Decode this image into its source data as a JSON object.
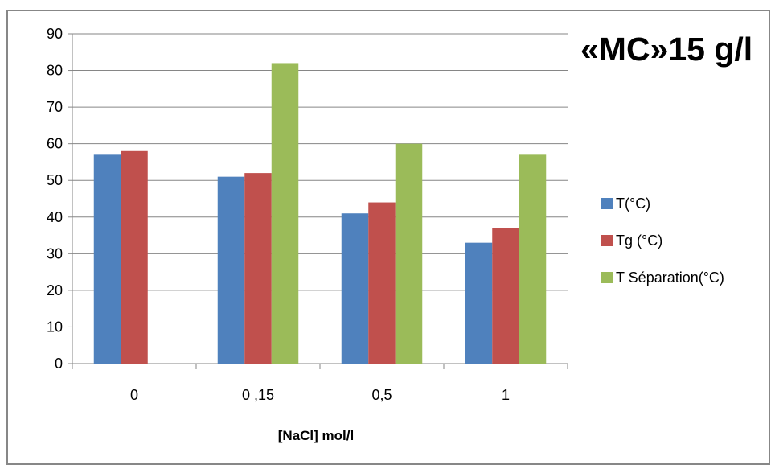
{
  "chart_data": {
    "type": "bar",
    "title": "«MC»15 g/l",
    "xlabel": "[NaCl]  mol/l",
    "ylabel": "",
    "categories": [
      "0",
      "0 ,15",
      "0,5",
      "1"
    ],
    "ylim": [
      0,
      90
    ],
    "yticks": [
      0,
      10,
      20,
      30,
      40,
      50,
      60,
      70,
      80,
      90
    ],
    "grid": true,
    "legend_position": "right",
    "series": [
      {
        "name": "T(°C)",
        "color": "#4f81bd",
        "values": [
          57,
          51,
          41,
          33
        ]
      },
      {
        "name": "Tg  (°C)",
        "color": "#c0504d",
        "values": [
          58,
          52,
          44,
          37
        ]
      },
      {
        "name": "T Séparation(°C)",
        "color": "#9bbb59",
        "values": [
          null,
          82,
          60,
          57
        ]
      }
    ]
  }
}
